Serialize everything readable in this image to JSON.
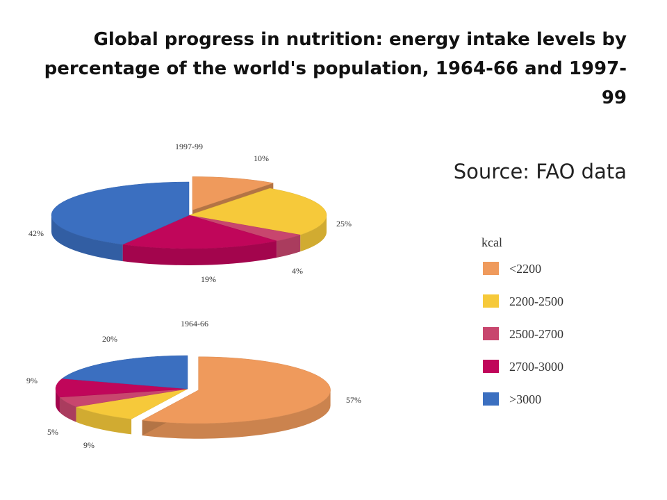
{
  "title": "Global progress in nutrition: energy intake levels by percentage of the world's population, 1964-66 and 1997-99",
  "source": "Source: FAO data",
  "legend": {
    "title": "kcal",
    "items": [
      {
        "label": "<2200",
        "color": "#ef9a5c"
      },
      {
        "label": "2200-2500",
        "color": "#f6c93a"
      },
      {
        "label": "2500-2700",
        "color": "#c8466e"
      },
      {
        "label": "2700-3000",
        "color": "#c0065a"
      },
      {
        "label": ">3000",
        "color": "#3b6fc0"
      }
    ]
  },
  "chart_data": [
    {
      "type": "pie",
      "title": "1997-99",
      "categories": [
        "<2200",
        "2200-2500",
        "2500-2700",
        "2700-3000",
        ">3000"
      ],
      "values": [
        10,
        25,
        4,
        19,
        42
      ],
      "labels": [
        "10%",
        "25%",
        "4%",
        "19%",
        "42%"
      ]
    },
    {
      "type": "pie",
      "title": "1964-66",
      "categories": [
        "<2200",
        "2200-2500",
        "2500-2700",
        "2700-3000",
        ">3000"
      ],
      "values": [
        57,
        9,
        5,
        9,
        20
      ],
      "labels": [
        "57%",
        "9%",
        "5%",
        "9%",
        "20%"
      ]
    }
  ]
}
